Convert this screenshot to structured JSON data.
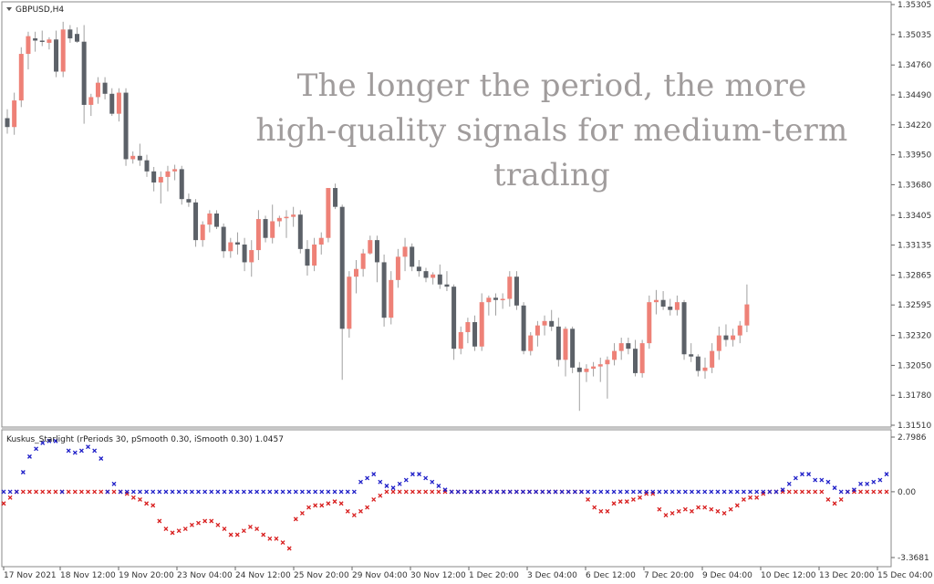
{
  "main_chart": {
    "symbol_label": "GBPUSD,H4",
    "price_axis": [
      "1.35305",
      "1.35035",
      "1.34760",
      "1.34490",
      "1.34220",
      "1.33950",
      "1.33680",
      "1.33405",
      "1.33135",
      "1.32865",
      "1.32595",
      "1.32320",
      "1.32050",
      "1.31780",
      "1.31510"
    ],
    "candles": [
      [
        1.3428,
        1.3436,
        1.3414,
        1.342
      ],
      [
        1.342,
        1.3451,
        1.3413,
        1.3444
      ],
      [
        1.3444,
        1.3492,
        1.3438,
        1.3486
      ],
      [
        1.3486,
        1.3506,
        1.3472,
        1.3502
      ],
      [
        1.35,
        1.3506,
        1.3488,
        1.3498
      ],
      [
        1.3498,
        1.3507,
        1.3493,
        1.3497
      ],
      [
        1.3496,
        1.3501,
        1.349,
        1.3499
      ],
      [
        1.3499,
        1.3507,
        1.3465,
        1.347
      ],
      [
        1.347,
        1.3515,
        1.3465,
        1.3508
      ],
      [
        1.3508,
        1.3512,
        1.3496,
        1.35
      ],
      [
        1.3504,
        1.351,
        1.3496,
        1.3497
      ],
      [
        1.3497,
        1.3512,
        1.3423,
        1.344
      ],
      [
        1.344,
        1.345,
        1.343,
        1.3447
      ],
      [
        1.3447,
        1.3465,
        1.3441,
        1.346
      ],
      [
        1.346,
        1.3465,
        1.3445,
        1.345
      ],
      [
        1.345,
        1.3455,
        1.343,
        1.3432
      ],
      [
        1.3432,
        1.3455,
        1.3425,
        1.3451
      ],
      [
        1.3451,
        1.3455,
        1.3385,
        1.3391
      ],
      [
        1.3391,
        1.3398,
        1.3387,
        1.3394
      ],
      [
        1.3394,
        1.3405,
        1.3385,
        1.339
      ],
      [
        1.339,
        1.3395,
        1.3375,
        1.338
      ],
      [
        1.338,
        1.3384,
        1.3362,
        1.337
      ],
      [
        1.337,
        1.338,
        1.3351,
        1.3375
      ],
      [
        1.3375,
        1.3385,
        1.3362,
        1.338
      ],
      [
        1.338,
        1.3386,
        1.3372,
        1.3382
      ],
      [
        1.3382,
        1.3385,
        1.335,
        1.3355
      ],
      [
        1.3355,
        1.336,
        1.3348,
        1.3352
      ],
      [
        1.3352,
        1.3355,
        1.3312,
        1.3318
      ],
      [
        1.3318,
        1.3335,
        1.3312,
        1.3332
      ],
      [
        1.3332,
        1.3345,
        1.3325,
        1.3342
      ],
      [
        1.3342,
        1.3345,
        1.3328,
        1.333
      ],
      [
        1.333,
        1.3333,
        1.3302,
        1.3308
      ],
      [
        1.3308,
        1.332,
        1.3302,
        1.3316
      ],
      [
        1.3316,
        1.3325,
        1.3305,
        1.3314
      ],
      [
        1.3314,
        1.332,
        1.329,
        1.3298
      ],
      [
        1.3298,
        1.3318,
        1.3285,
        1.3309
      ],
      [
        1.3309,
        1.3345,
        1.33,
        1.3337
      ],
      [
        1.3337,
        1.334,
        1.3316,
        1.332
      ],
      [
        1.332,
        1.335,
        1.3315,
        1.3335
      ],
      [
        1.3335,
        1.334,
        1.333,
        1.3338
      ],
      [
        1.3338,
        1.3345,
        1.332,
        1.3339
      ],
      [
        1.3339,
        1.3348,
        1.333,
        1.3341
      ],
      [
        1.3341,
        1.3345,
        1.3306,
        1.331
      ],
      [
        1.331,
        1.3318,
        1.3286,
        1.3295
      ],
      [
        1.3295,
        1.332,
        1.329,
        1.3314
      ],
      [
        1.3314,
        1.3325,
        1.3305,
        1.332
      ],
      [
        1.332,
        1.3365,
        1.3316,
        1.3365
      ],
      [
        1.3365,
        1.3369,
        1.3346,
        1.3348
      ],
      [
        1.3348,
        1.335,
        1.3192,
        1.3238
      ],
      [
        1.3238,
        1.329,
        1.323,
        1.3285
      ],
      [
        1.3285,
        1.33,
        1.327,
        1.3292
      ],
      [
        1.3292,
        1.331,
        1.3285,
        1.3306
      ],
      [
        1.3306,
        1.3322,
        1.3305,
        1.3318
      ],
      [
        1.3318,
        1.3322,
        1.328,
        1.3298
      ],
      [
        1.3298,
        1.3305,
        1.324,
        1.3248
      ],
      [
        1.3248,
        1.329,
        1.3242,
        1.3282
      ],
      [
        1.3282,
        1.331,
        1.3275,
        1.3303
      ],
      [
        1.3303,
        1.332,
        1.329,
        1.3312
      ],
      [
        1.3312,
        1.3315,
        1.329,
        1.3294
      ],
      [
        1.3294,
        1.33,
        1.3285,
        1.329
      ],
      [
        1.329,
        1.3293,
        1.328,
        1.3284
      ],
      [
        1.3284,
        1.3289,
        1.3278,
        1.3287
      ],
      [
        1.3287,
        1.3296,
        1.3274,
        1.3278
      ],
      [
        1.3278,
        1.329,
        1.3272,
        1.3276
      ],
      [
        1.3276,
        1.3278,
        1.321,
        1.322
      ],
      [
        1.322,
        1.324,
        1.3215,
        1.3235
      ],
      [
        1.3235,
        1.3248,
        1.3225,
        1.3244
      ],
      [
        1.3244,
        1.325,
        1.3218,
        1.3222
      ],
      [
        1.3222,
        1.327,
        1.3218,
        1.3262
      ],
      [
        1.3262,
        1.3268,
        1.325,
        1.3266
      ],
      [
        1.3266,
        1.327,
        1.325,
        1.3264
      ],
      [
        1.3264,
        1.327,
        1.3256,
        1.3265
      ],
      [
        1.3265,
        1.329,
        1.3258,
        1.3285
      ],
      [
        1.3285,
        1.329,
        1.3255,
        1.3259
      ],
      [
        1.3259,
        1.3262,
        1.3215,
        1.3218
      ],
      [
        1.3218,
        1.3235,
        1.3214,
        1.3232
      ],
      [
        1.3232,
        1.3245,
        1.3222,
        1.3241
      ],
      [
        1.3241,
        1.325,
        1.3232,
        1.3245
      ],
      [
        1.3245,
        1.3255,
        1.3236,
        1.324
      ],
      [
        1.324,
        1.3248,
        1.3204,
        1.321
      ],
      [
        1.321,
        1.324,
        1.3195,
        1.3238
      ],
      [
        1.3238,
        1.324,
        1.3198,
        1.3203
      ],
      [
        1.3203,
        1.3208,
        1.3164,
        1.3199
      ],
      [
        1.3199,
        1.3206,
        1.319,
        1.3202
      ],
      [
        1.3202,
        1.3208,
        1.3195,
        1.3204
      ],
      [
        1.3204,
        1.3212,
        1.319,
        1.3206
      ],
      [
        1.3206,
        1.3213,
        1.3175,
        1.321
      ],
      [
        1.321,
        1.3225,
        1.3205,
        1.3218
      ],
      [
        1.3218,
        1.323,
        1.321,
        1.3225
      ],
      [
        1.3225,
        1.323,
        1.3215,
        1.322
      ],
      [
        1.322,
        1.3228,
        1.3195,
        1.3198
      ],
      [
        1.3198,
        1.3228,
        1.3194,
        1.3225
      ],
      [
        1.3225,
        1.3268,
        1.322,
        1.3262
      ],
      [
        1.3262,
        1.3273,
        1.3251,
        1.3264
      ],
      [
        1.3264,
        1.3272,
        1.3255,
        1.3258
      ],
      [
        1.3258,
        1.3265,
        1.325,
        1.3255
      ],
      [
        1.3255,
        1.3268,
        1.325,
        1.3262
      ],
      [
        1.3262,
        1.3264,
        1.321,
        1.3215
      ],
      [
        1.3215,
        1.3225,
        1.3208,
        1.3213
      ],
      [
        1.3213,
        1.3215,
        1.3195,
        1.32
      ],
      [
        1.32,
        1.3212,
        1.3193,
        1.3203
      ],
      [
        1.3203,
        1.3225,
        1.3198,
        1.3218
      ],
      [
        1.3218,
        1.324,
        1.321,
        1.3232
      ],
      [
        1.3232,
        1.3242,
        1.3222,
        1.3228
      ],
      [
        1.3228,
        1.3238,
        1.3222,
        1.3232
      ],
      [
        1.3232,
        1.3245,
        1.3225,
        1.3241
      ],
      [
        1.3241,
        1.3278,
        1.3235,
        1.326
      ]
    ]
  },
  "indicator": {
    "label": "Kuskus_Starlight  (rPeriods 30, pSmooth 0.30, iSmooth 0.30)   1.0457",
    "axis": [
      "2.7986",
      "0.00",
      "-3.3681"
    ],
    "blue": [
      0,
      0,
      0,
      1,
      1.8,
      2.2,
      2.5,
      2.6,
      2.6,
      0,
      2.1,
      2,
      2.1,
      2.3,
      2.1,
      1.7,
      0,
      0.4,
      0,
      0,
      0,
      0,
      0,
      0,
      0,
      0,
      0,
      0,
      0,
      0,
      0,
      0,
      0,
      0,
      0,
      0,
      0,
      0,
      0,
      0,
      0,
      0,
      0,
      0,
      0,
      0,
      0,
      0,
      0,
      0,
      0,
      0,
      0,
      0,
      0,
      0.5,
      0.7,
      0.9,
      0.5,
      0.3,
      0.2,
      0.4,
      0.6,
      0.9,
      0.9,
      0.7,
      0.5,
      0.3,
      0.1,
      0,
      0,
      0,
      0,
      0,
      0,
      0,
      0,
      0,
      0,
      0,
      0,
      0,
      0,
      0,
      0,
      0,
      0,
      0,
      0,
      0,
      0,
      0,
      0,
      0,
      0,
      0,
      0,
      0,
      0,
      0,
      0,
      0,
      0,
      0,
      0,
      0,
      0,
      0,
      0,
      0,
      0,
      0,
      0,
      0,
      0,
      0,
      0,
      0,
      0,
      0,
      0.1,
      0.4,
      0.7,
      0.9,
      0.9,
      0.6,
      0.6,
      0.5,
      0.2,
      0,
      0,
      0.1,
      0.4,
      0.4,
      0.5,
      0.6,
      0.9
    ],
    "red": [
      -0.6,
      -0.3,
      0,
      0,
      0,
      0,
      0,
      0,
      0,
      0,
      0,
      0,
      0,
      0,
      0,
      0,
      0,
      0,
      0,
      -0.1,
      -0.3,
      -0.4,
      -0.6,
      -0.7,
      -1.5,
      -1.9,
      -2.1,
      -2,
      -1.9,
      -1.7,
      -1.6,
      -1.5,
      -1.5,
      -1.7,
      -1.9,
      -2.2,
      -2.2,
      -2,
      -1.8,
      -1.9,
      -2.2,
      -2.4,
      -2.4,
      -2.6,
      -2.9,
      -1.4,
      -1.1,
      -0.8,
      -0.7,
      -0.7,
      -0.6,
      -0.5,
      -0.6,
      -1,
      -1.2,
      -1.0,
      -0.8,
      -0.4,
      -0.2,
      0,
      0,
      0,
      0,
      0,
      0,
      0,
      0,
      0,
      0,
      0,
      0,
      0,
      0,
      0,
      0,
      0,
      0,
      0,
      0,
      0,
      0,
      0,
      0,
      0,
      0,
      0,
      0,
      0,
      0,
      0,
      -0.4,
      -0.8,
      -1,
      -1,
      -0.6,
      -0.5,
      -0.5,
      -0.4,
      -0.3,
      -0.1,
      -0.1,
      -0.9,
      -1.2,
      -1.1,
      -1,
      -0.9,
      -1.0,
      -0.8,
      -0.8,
      -0.9,
      -1.0,
      -1.1,
      -0.9,
      -0.7,
      -0.4,
      -0.3,
      -0.3,
      -0.1,
      0,
      0,
      0,
      0,
      0,
      0,
      0,
      0,
      0,
      -0.4,
      -0.6,
      -0.4,
      0,
      0,
      0,
      0,
      0,
      0,
      0
    ]
  },
  "time_axis": [
    "17 Nov 2021",
    "18 Nov 12:00",
    "19 Nov 20:00",
    "23 Nov 04:00",
    "24 Nov 12:00",
    "25 Nov 20:00",
    "29 Nov 04:00",
    "30 Nov 12:00",
    "1 Dec 20:00",
    "3 Dec 04:00",
    "6 Dec 12:00",
    "7 Dec 20:00",
    "9 Dec 04:00",
    "10 Dec 12:00",
    "13 Dec 20:00",
    "15 Dec 04:00"
  ],
  "overlay_text": [
    "The longer the period, the more",
    "high-quality signals for medium-term",
    "trading"
  ],
  "colors": {
    "bull": "#ee8177",
    "bear": "#5c6168",
    "blue_marker": "#1e1ec8",
    "red_marker": "#d81e1e"
  },
  "icons": {
    "dropdown": "triangle-down-icon"
  }
}
